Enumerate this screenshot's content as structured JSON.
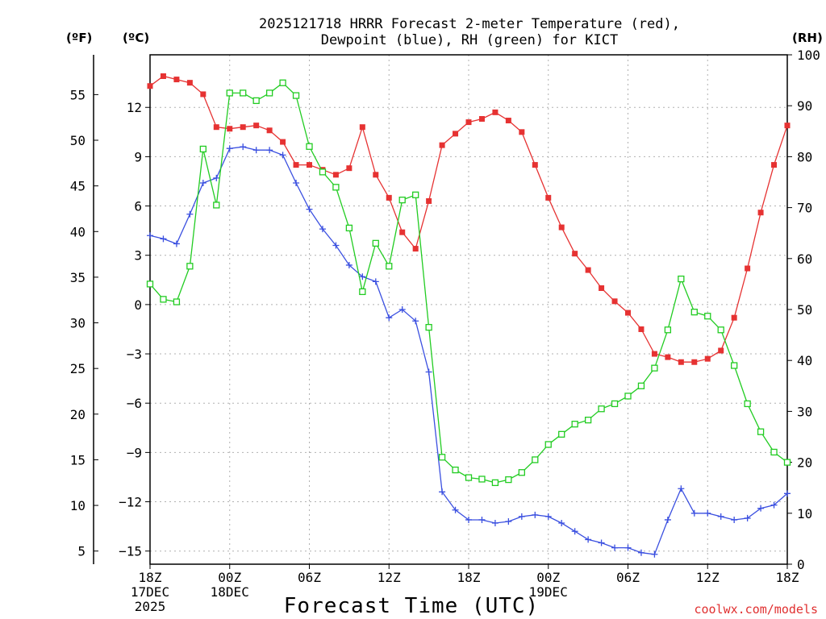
{
  "chart_data": {
    "type": "line",
    "title_line1": "2025121718 HRRR Forecast 2-meter Temperature (red),",
    "title_line2": "Dewpoint (blue), RH (green) for KICT",
    "xlabel": "Forecast Time (UTC)",
    "credit": "coolwx.com/models",
    "units": {
      "fahrenheit": "(ºF)",
      "celsius": "(ºC)",
      "rh": "(RH)"
    },
    "x_range_hours": [
      0,
      48
    ],
    "x_ticks": [
      {
        "hour": 0,
        "lines": [
          "18Z",
          "17DEC",
          "2025"
        ]
      },
      {
        "hour": 6,
        "lines": [
          "00Z",
          "18DEC"
        ]
      },
      {
        "hour": 12,
        "lines": [
          "06Z"
        ]
      },
      {
        "hour": 18,
        "lines": [
          "12Z"
        ]
      },
      {
        "hour": 24,
        "lines": [
          "18Z"
        ]
      },
      {
        "hour": 30,
        "lines": [
          "00Z",
          "19DEC"
        ]
      },
      {
        "hour": 36,
        "lines": [
          "06Z"
        ]
      },
      {
        "hour": 42,
        "lines": [
          "12Z"
        ]
      },
      {
        "hour": 48,
        "lines": [
          "18Z"
        ]
      }
    ],
    "celsius_range": [
      -15.8,
      15.2
    ],
    "celsius_ticks": [
      12,
      9,
      6,
      3,
      0,
      -3,
      -6,
      -9,
      -12,
      -15
    ],
    "celsius_tick_labels": [
      "12",
      "9",
      "6",
      "3",
      "0",
      "−3",
      "−6",
      "−9",
      "−12",
      "−15"
    ],
    "fahrenheit_ticks": [
      55,
      50,
      45,
      40,
      35,
      30,
      25,
      20,
      15,
      10,
      5
    ],
    "fahrenheit_tick_labels": [
      "55",
      "50",
      "45",
      "40",
      "35",
      "30",
      "25",
      "20",
      "15",
      "10",
      "5"
    ],
    "rh_range": [
      0,
      100
    ],
    "rh_ticks": [
      0,
      10,
      20,
      30,
      40,
      50,
      60,
      70,
      80,
      90,
      100
    ],
    "rh_tick_labels": [
      "0",
      "10",
      "20",
      "30",
      "40",
      "50",
      "60",
      "70",
      "80",
      "90",
      "100"
    ],
    "grid": true,
    "series": [
      {
        "name": "2-meter Temperature (°C)",
        "axis": "celsius",
        "color": "#e63232",
        "marker": "filled-square",
        "values": [
          13.3,
          13.9,
          13.7,
          13.5,
          12.8,
          10.8,
          10.7,
          10.8,
          10.9,
          10.6,
          9.9,
          8.5,
          8.5,
          8.2,
          7.9,
          8.3,
          10.8,
          7.9,
          6.5,
          4.4,
          3.4,
          6.3,
          9.7,
          10.4,
          11.1,
          11.3,
          11.7,
          11.2,
          10.5,
          8.5,
          6.5,
          4.7,
          3.1,
          2.1,
          1.0,
          0.2,
          -0.5,
          -1.5,
          -3.0,
          -3.2,
          -3.5,
          -3.5,
          -3.3,
          -2.8,
          -0.8,
          2.2,
          5.6,
          8.5,
          10.9
        ]
      },
      {
        "name": "Dewpoint (°C)",
        "axis": "celsius",
        "color": "#3a4fe0",
        "marker": "plus",
        "values": [
          4.2,
          4.0,
          3.7,
          5.5,
          7.4,
          7.7,
          9.5,
          9.6,
          9.4,
          9.4,
          9.1,
          7.4,
          5.8,
          4.6,
          3.6,
          2.4,
          1.7,
          1.4,
          -0.8,
          -0.3,
          -1.0,
          -4.1,
          -11.4,
          -12.5,
          -13.1,
          -13.1,
          -13.3,
          -13.2,
          -12.9,
          -12.8,
          -12.9,
          -13.3,
          -13.8,
          -14.3,
          -14.5,
          -14.8,
          -14.8,
          -15.1,
          -15.2,
          -13.1,
          -11.2,
          -12.7,
          -12.7,
          -12.9,
          -13.1,
          -13.0,
          -12.4,
          -12.2,
          -11.5
        ]
      },
      {
        "name": "Relative Humidity (%)",
        "axis": "rh",
        "color": "#22cc22",
        "marker": "open-square",
        "values": [
          55,
          52,
          51.5,
          58.5,
          81.5,
          70.5,
          92.5,
          92.5,
          91,
          92.5,
          94.5,
          92,
          82,
          77,
          74,
          66,
          53.5,
          63,
          58.5,
          71.5,
          72.5,
          46.5,
          21,
          18.5,
          17,
          16.7,
          16,
          16.6,
          18,
          20.5,
          23.5,
          25.5,
          27.5,
          28.3,
          30.5,
          31.5,
          33,
          35,
          38.5,
          46,
          56,
          49.5,
          48.7,
          46,
          39,
          31.5,
          26,
          22,
          20
        ]
      }
    ]
  }
}
